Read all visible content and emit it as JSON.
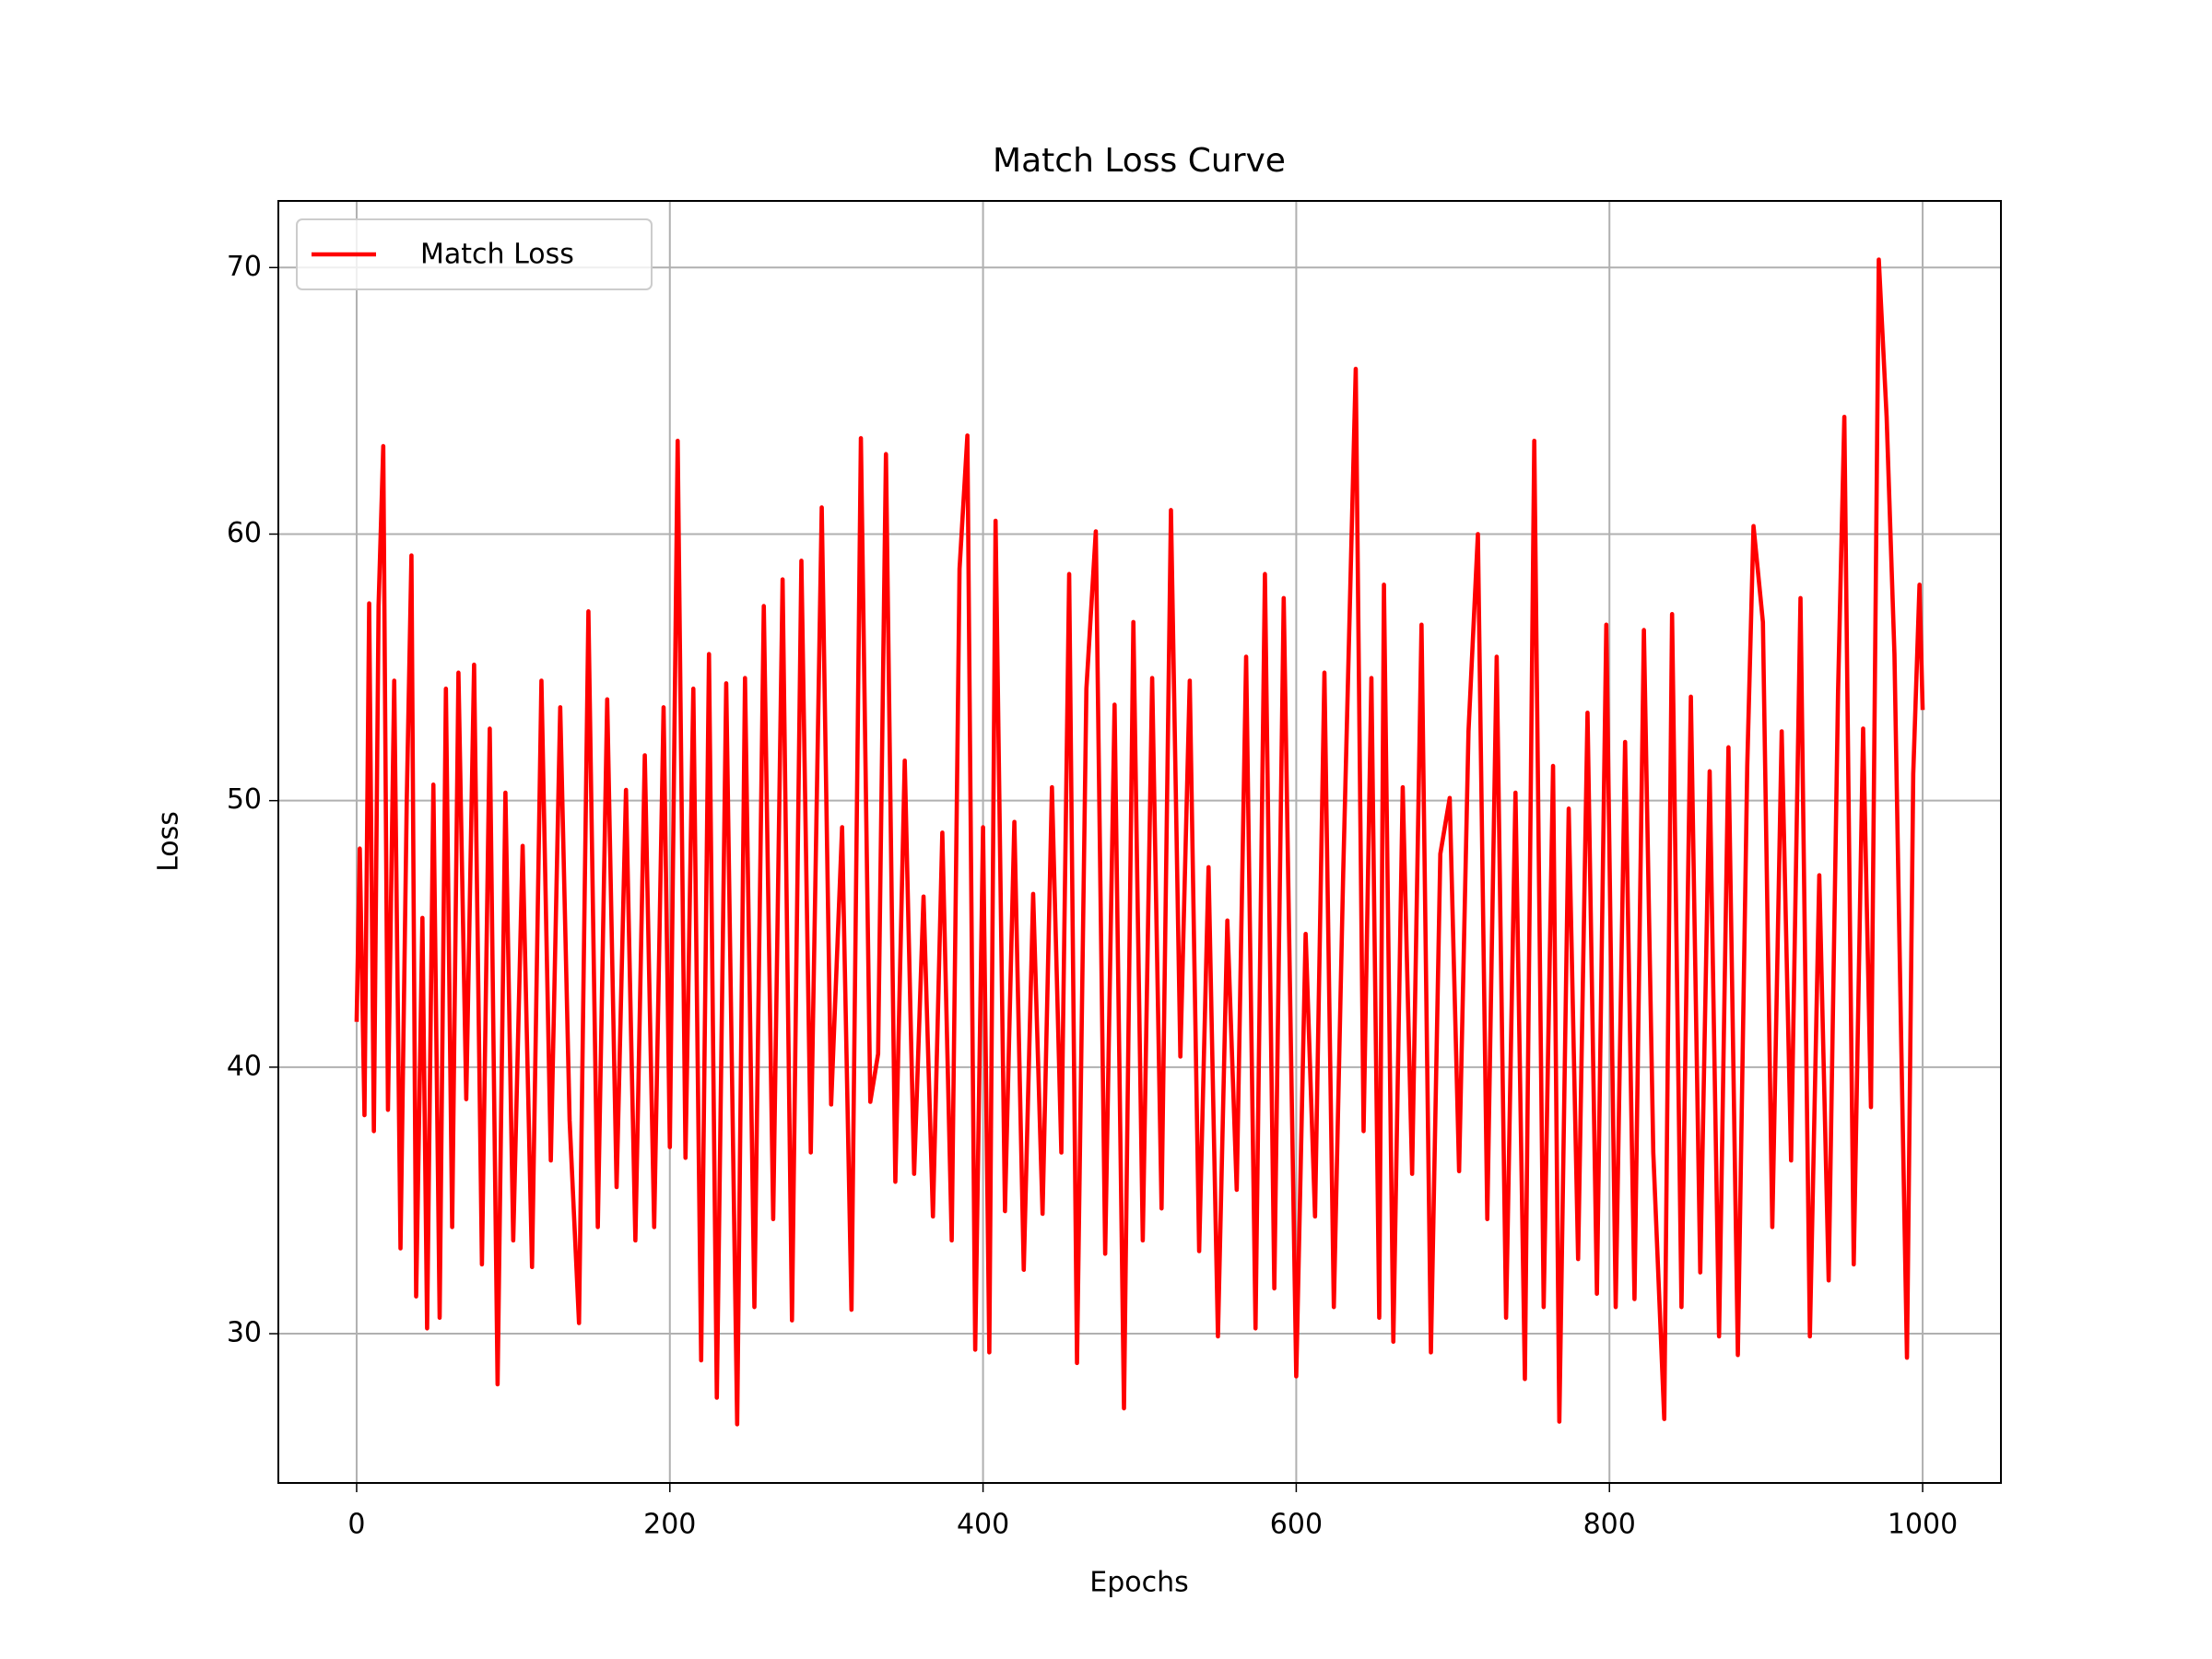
{
  "chart_data": {
    "type": "line",
    "title": "Match Loss Curve",
    "x_label": "Epochs",
    "y_label": "Loss",
    "x": [
      0,
      2,
      5,
      8,
      11,
      14,
      17,
      20,
      24,
      28,
      32,
      35,
      38,
      42,
      45,
      49,
      53,
      57,
      61,
      65,
      70,
      75,
      80,
      85,
      90,
      95,
      100,
      106,
      112,
      118,
      124,
      130,
      136,
      142,
      148,
      154,
      160,
      166,
      172,
      178,
      184,
      190,
      196,
      200,
      205,
      210,
      215,
      220,
      225,
      230,
      236,
      243,
      248,
      254,
      260,
      266,
      272,
      278,
      284,
      290,
      297,
      303,
      310,
      316,
      322,
      328,
      333,
      338,
      344,
      350,
      356,
      362,
      368,
      374,
      380,
      385,
      390,
      395,
      400,
      404,
      408,
      414,
      420,
      426,
      432,
      438,
      444,
      450,
      455,
      460,
      466,
      472,
      478,
      484,
      490,
      496,
      502,
      508,
      514,
      520,
      526,
      532,
      538,
      544,
      550,
      556,
      562,
      568,
      574,
      580,
      586,
      592,
      600,
      606,
      612,
      618,
      624,
      630,
      638,
      643,
      648,
      653,
      656,
      662,
      668,
      674,
      680,
      686,
      692,
      698,
      704,
      710,
      716,
      722,
      728,
      734,
      740,
      746,
      752,
      758,
      764,
      768,
      774,
      780,
      786,
      792,
      798,
      804,
      810,
      816,
      822,
      828,
      835,
      840,
      846,
      852,
      858,
      864,
      870,
      876,
      882,
      888,
      892,
      898,
      904,
      910,
      916,
      922,
      928,
      934,
      940,
      946,
      950,
      956,
      962,
      967,
      972,
      977,
      982,
      986,
      990,
      994,
      998,
      1000
    ],
    "series": [
      {
        "name": "Match Loss",
        "color": "#ff0000",
        "values": [
          41.7,
          48.2,
          38.2,
          57.4,
          37.6,
          57.3,
          63.3,
          38.4,
          54.5,
          33.2,
          50.0,
          59.2,
          31.4,
          45.6,
          30.2,
          50.6,
          30.6,
          54.2,
          34.0,
          54.8,
          38.8,
          55.1,
          32.6,
          52.7,
          28.1,
          50.3,
          33.5,
          48.3,
          32.5,
          54.5,
          36.5,
          53.5,
          38.0,
          30.4,
          57.1,
          34.0,
          53.8,
          35.5,
          50.4,
          33.5,
          51.7,
          34.0,
          53.5,
          37.0,
          63.5,
          36.6,
          54.2,
          29.0,
          55.5,
          27.6,
          54.4,
          26.6,
          54.6,
          31.0,
          57.3,
          34.3,
          58.3,
          30.5,
          59.0,
          36.8,
          61.0,
          38.6,
          49.0,
          30.9,
          63.6,
          38.7,
          40.5,
          63.0,
          35.7,
          51.5,
          36.0,
          46.4,
          34.4,
          48.8,
          33.5,
          58.7,
          63.7,
          29.4,
          49.0,
          29.3,
          60.5,
          34.6,
          49.2,
          32.4,
          46.5,
          34.5,
          50.5,
          36.8,
          58.5,
          28.9,
          54.2,
          60.1,
          33.0,
          53.6,
          27.2,
          56.7,
          33.5,
          54.6,
          34.7,
          60.9,
          40.4,
          54.5,
          33.1,
          47.5,
          29.9,
          45.5,
          35.4,
          55.4,
          30.2,
          58.5,
          31.7,
          57.6,
          28.4,
          45.0,
          34.4,
          54.8,
          31.0,
          47.3,
          66.2,
          37.6,
          54.6,
          30.6,
          58.1,
          29.7,
          50.5,
          36.0,
          56.6,
          29.3,
          48.0,
          50.1,
          36.1,
          52.6,
          60.0,
          34.3,
          55.4,
          30.6,
          50.3,
          28.3,
          63.5,
          31.0,
          51.3,
          26.7,
          49.7,
          32.8,
          53.3,
          31.5,
          56.6,
          31.0,
          52.2,
          31.3,
          56.4,
          36.8,
          26.8,
          57.0,
          31.0,
          53.9,
          32.3,
          51.1,
          29.9,
          52.0,
          29.2,
          51.3,
          60.3,
          56.7,
          34.0,
          52.6,
          36.5,
          57.6,
          29.9,
          47.2,
          32.0,
          54.1,
          64.4,
          32.6,
          52.7,
          38.5,
          70.3,
          64.4,
          55.5,
          42.0,
          29.1,
          51.0,
          58.1,
          53.4
        ]
      }
    ],
    "xlim": [
      -50,
      1050
    ],
    "ylim": [
      24.4,
      72.5
    ],
    "xticks": [
      0,
      200,
      400,
      600,
      800,
      1000
    ],
    "yticks": [
      30,
      40,
      50,
      60,
      70
    ],
    "grid": true,
    "legend": "upper left"
  }
}
